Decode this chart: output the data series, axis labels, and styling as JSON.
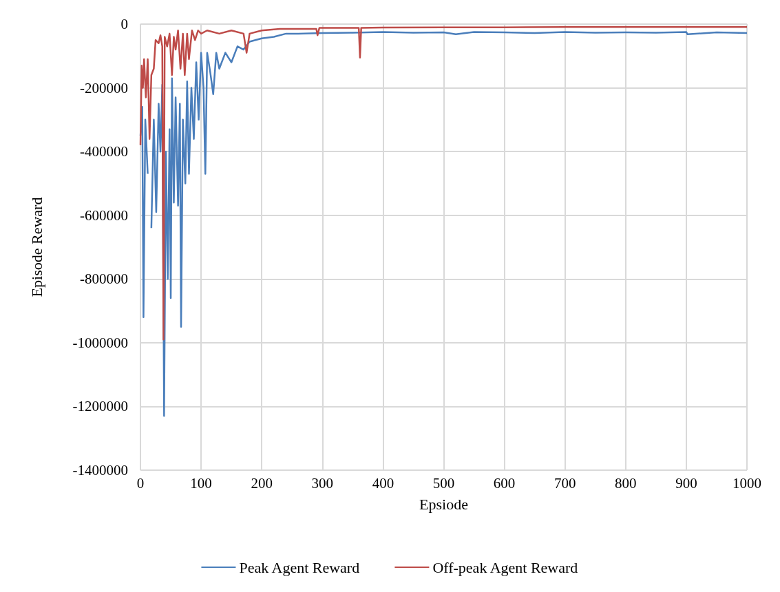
{
  "chart_data": {
    "type": "line",
    "xlabel": "Epsiode",
    "ylabel": "Episode Reward",
    "xlim": [
      0,
      1000
    ],
    "xticks": [
      0,
      100,
      200,
      300,
      400,
      500,
      600,
      700,
      800,
      900,
      1000
    ],
    "ylim": [
      -1400000,
      0
    ],
    "yticks": [
      -1400000,
      -1200000,
      -1000000,
      -800000,
      -600000,
      -400000,
      -200000,
      0
    ],
    "grid": true,
    "legend": "bottom",
    "marker": "none",
    "line_style": "solid",
    "series": [
      {
        "name": "Peak Agent Reward",
        "color": "#4a7ebb",
        "x": [
          0,
          3,
          5,
          8,
          12,
          15,
          18,
          22,
          26,
          30,
          33,
          36,
          39,
          42,
          45,
          48,
          50,
          52,
          55,
          58,
          62,
          65,
          67,
          70,
          74,
          77,
          80,
          84,
          88,
          92,
          96,
          100,
          104,
          107,
          110,
          115,
          120,
          125,
          130,
          140,
          150,
          160,
          170,
          180,
          200,
          220,
          240,
          260,
          300,
          350,
          400,
          450,
          500,
          520,
          550,
          600,
          650,
          700,
          750,
          800,
          850,
          900,
          902,
          950,
          1000
        ],
        "values": [
          -350000,
          -260000,
          -920000,
          -300000,
          -470000,
          null,
          -640000,
          -300000,
          -590000,
          -250000,
          -400000,
          -190000,
          -1230000,
          -400000,
          -800000,
          -330000,
          -860000,
          -170000,
          -560000,
          -230000,
          -570000,
          -250000,
          -950000,
          -300000,
          -500000,
          -180000,
          -470000,
          -200000,
          -360000,
          -120000,
          -300000,
          -90000,
          -200000,
          -470000,
          -90000,
          -150000,
          -220000,
          -90000,
          -140000,
          -90000,
          -120000,
          -70000,
          -80000,
          -55000,
          -45000,
          -40000,
          -30000,
          -30000,
          -28000,
          -27000,
          -25000,
          -27000,
          -26000,
          -32000,
          -25000,
          -26000,
          -28000,
          -25000,
          -27000,
          -26000,
          -27000,
          -25000,
          -32000,
          -26000,
          -28000
        ]
      },
      {
        "name": "Off-peak Agent Reward",
        "color": "#be4b48",
        "x": [
          0,
          2,
          4,
          6,
          9,
          12,
          15,
          18,
          22,
          25,
          30,
          33,
          36,
          38,
          40,
          44,
          48,
          52,
          55,
          58,
          62,
          66,
          70,
          73,
          77,
          80,
          85,
          90,
          95,
          100,
          110,
          130,
          150,
          170,
          175,
          180,
          200,
          230,
          290,
          292,
          295,
          360,
          362,
          364,
          400,
          500,
          600,
          700,
          800,
          900,
          1000
        ],
        "values": [
          -380000,
          -130000,
          -200000,
          -110000,
          -230000,
          -110000,
          -360000,
          -160000,
          -140000,
          -50000,
          -60000,
          -35000,
          -70000,
          -990000,
          -40000,
          -70000,
          -30000,
          -160000,
          -40000,
          -80000,
          -20000,
          -140000,
          -30000,
          -160000,
          -30000,
          -110000,
          -20000,
          -50000,
          -20000,
          -30000,
          -20000,
          -30000,
          -20000,
          -30000,
          -90000,
          -30000,
          -20000,
          -15000,
          -15000,
          -35000,
          -12000,
          -12000,
          -105000,
          -12000,
          -11000,
          -10000,
          -10000,
          -9000,
          -9000,
          -9000,
          -9000
        ]
      }
    ]
  }
}
